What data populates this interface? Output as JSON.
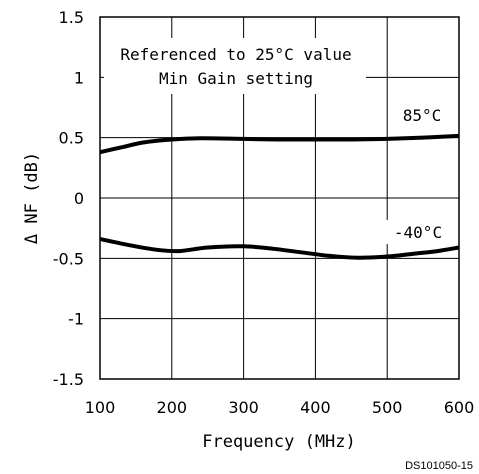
{
  "chart_data": {
    "type": "line",
    "title": "",
    "xlabel": "Frequency (MHz)",
    "ylabel": "Δ NF (dB)",
    "xlim": [
      100,
      600
    ],
    "ylim": [
      -1.5,
      1.5
    ],
    "x_ticks": [
      100,
      200,
      300,
      400,
      500,
      600
    ],
    "y_ticks": [
      1.5,
      1,
      0.5,
      0,
      -0.5,
      -1,
      -1.5
    ],
    "y_tick_labels": [
      "1.5",
      "1",
      "0.5",
      "0",
      "-0.5",
      "-1",
      "-1.5"
    ],
    "grid": true,
    "annotations": [
      "Referenced to 25°C value",
      "Min Gain setting"
    ],
    "series": [
      {
        "name": "85°C",
        "x": [
          100,
          130,
          160,
          200,
          240,
          300,
          350,
          400,
          450,
          500,
          550,
          600
        ],
        "y": [
          0.38,
          0.42,
          0.46,
          0.485,
          0.495,
          0.49,
          0.485,
          0.485,
          0.485,
          0.49,
          0.5,
          0.515
        ]
      },
      {
        "name": "-40°C",
        "x": [
          100,
          140,
          180,
          210,
          250,
          300,
          340,
          380,
          420,
          460,
          500,
          540,
          570,
          600
        ],
        "y": [
          -0.34,
          -0.39,
          -0.43,
          -0.44,
          -0.41,
          -0.4,
          -0.42,
          -0.45,
          -0.48,
          -0.495,
          -0.485,
          -0.46,
          -0.44,
          -0.41
        ]
      }
    ],
    "footer": "DS101050-15"
  }
}
